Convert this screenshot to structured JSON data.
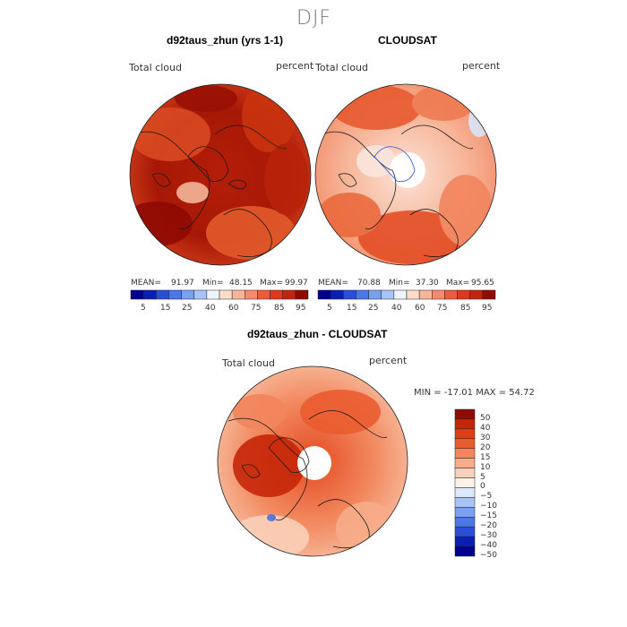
{
  "main_title": "DJF",
  "panels": [
    {
      "title": "d92taus_zhun (yrs 1-1)",
      "left_label": "Total cloud",
      "right_label": "percent",
      "stats": {
        "mean_label": "MEAN=",
        "mean": "91.97",
        "min_label": "Min=",
        "min": "48.15",
        "max_label": "Max=",
        "max": "99.97"
      }
    },
    {
      "title": "CLOUDSAT",
      "left_label": "Total cloud",
      "right_label": "percent",
      "stats": {
        "mean_label": "MEAN=",
        "mean": "70.88",
        "min_label": "Min=",
        "min": "37.30",
        "max_label": "Max=",
        "max": "95.65"
      }
    },
    {
      "title": "d92taus_zhun - CLOUDSAT",
      "left_label": "Total cloud",
      "right_label": "percent",
      "minmax": "MIN = -17.01 MAX =  54.72"
    }
  ],
  "colorbar_top": {
    "colors": [
      "#00008f",
      "#0a1fb4",
      "#2a4fd6",
      "#4a78e8",
      "#7aa0f0",
      "#a8c4f6",
      "#eef4fc",
      "#fcdccb",
      "#f9b59a",
      "#f48b6a",
      "#ec5c3a",
      "#dc3a1c",
      "#c1260c",
      "#8f0b04"
    ],
    "tick_labels": [
      "5",
      "15",
      "25",
      "40",
      "60",
      "75",
      "85",
      "95"
    ]
  },
  "colorbar_diff": {
    "colors": [
      "#00008f",
      "#0a1fb4",
      "#2a4fd6",
      "#4a78e8",
      "#7aa0f0",
      "#a8c4f6",
      "#dce8fb",
      "#fdf1ea",
      "#fbd0b8",
      "#f7ac8a",
      "#f2855c",
      "#ea5c30",
      "#de3e14",
      "#c62608",
      "#8f0b04"
    ],
    "tick_labels": [
      "50",
      "40",
      "30",
      "20",
      "15",
      "10",
      "5",
      "0",
      "−5",
      "−10",
      "−15",
      "−20",
      "−30",
      "−40",
      "−50"
    ]
  }
}
